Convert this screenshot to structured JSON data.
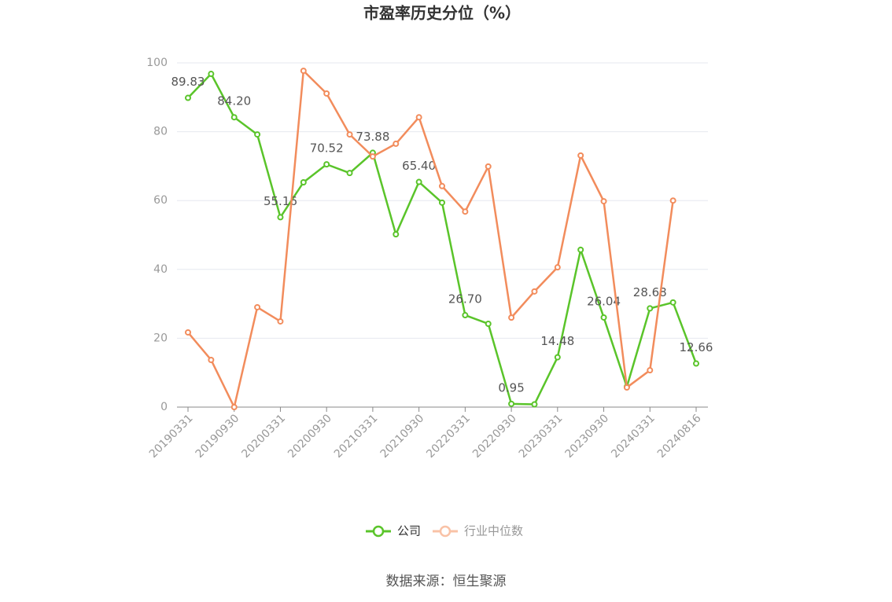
{
  "chart_data": {
    "type": "line",
    "title": "市盈率历史分位（%）",
    "categories": [
      "20190331",
      null,
      "20190930",
      null,
      "20200331",
      null,
      "20200930",
      null,
      "20210331",
      null,
      "20210930",
      null,
      "20220331",
      null,
      "20220930",
      null,
      "20230331",
      null,
      "20230930",
      null,
      "20240331",
      null,
      "20240816"
    ],
    "series": [
      {
        "name": "公司",
        "color": "#5ac42a",
        "values": [
          89.83,
          96.8,
          84.2,
          79.2,
          55.16,
          65.3,
          70.52,
          68.0,
          73.88,
          50.2,
          65.4,
          59.4,
          26.7,
          24.2,
          0.95,
          0.8,
          14.48,
          45.7,
          26.04,
          5.9,
          28.68,
          30.4,
          12.66
        ],
        "value_labels": [
          "89.83",
          null,
          "84.20",
          null,
          "55.16",
          null,
          "70.52",
          null,
          "73.88",
          null,
          "65.40",
          null,
          "26.70",
          null,
          "0.95",
          null,
          "14.48",
          null,
          "26.04",
          null,
          "28.68",
          null,
          "12.66"
        ]
      },
      {
        "name": "行业中位数",
        "color": "#f28c5c",
        "values": [
          21.7,
          13.7,
          0,
          29.0,
          24.9,
          97.7,
          91.1,
          79.2,
          72.8,
          76.5,
          84.2,
          64.2,
          56.8,
          69.9,
          26.0,
          33.6,
          40.6,
          73.1,
          59.8,
          5.7,
          10.7,
          60.0,
          null
        ]
      }
    ],
    "ylim": [
      0,
      100
    ],
    "yticks": [
      0,
      20,
      40,
      60,
      80,
      100
    ],
    "grid": true,
    "legend": "bottom",
    "source": "数据来源：恒生聚源"
  }
}
